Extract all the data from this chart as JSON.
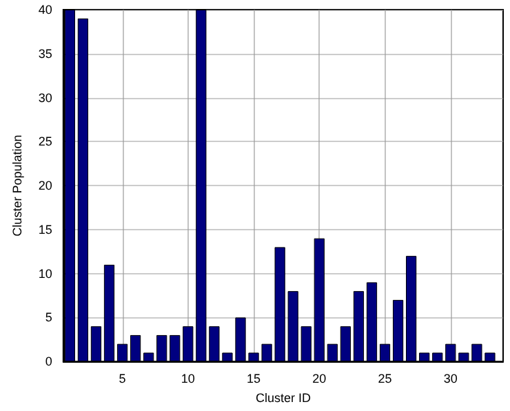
{
  "chart_data": {
    "type": "bar",
    "xlabel": "Cluster ID",
    "ylabel": "Cluster Population",
    "x": [
      1,
      2,
      3,
      4,
      5,
      6,
      7,
      8,
      9,
      10,
      11,
      12,
      13,
      14,
      15,
      16,
      17,
      18,
      19,
      20,
      21,
      22,
      23,
      24,
      25,
      26,
      27,
      28,
      29,
      30,
      31,
      32,
      33
    ],
    "values": [
      40,
      39,
      4,
      11,
      2,
      3,
      1,
      3,
      3,
      4,
      40,
      4,
      1,
      5,
      1,
      2,
      13,
      8,
      4,
      14,
      2,
      4,
      8,
      9,
      2,
      7,
      12,
      1,
      1,
      2,
      1,
      2,
      1
    ],
    "color": "#000080",
    "xlim": [
      0.5,
      34
    ],
    "xticks": [
      5,
      10,
      15,
      20,
      25,
      30
    ],
    "ylim": [
      0,
      40
    ],
    "yticks": [
      0,
      5,
      10,
      15,
      20,
      25,
      30,
      35,
      40
    ],
    "grid": true
  }
}
